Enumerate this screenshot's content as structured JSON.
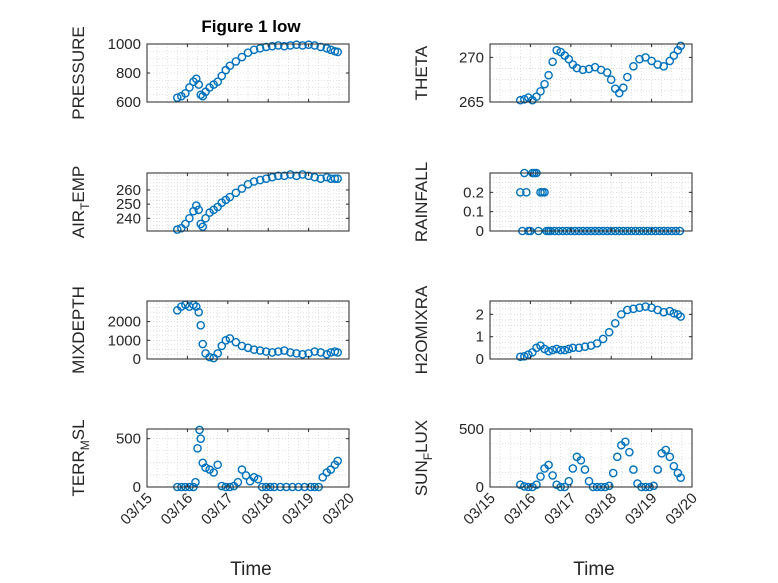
{
  "figure": {
    "title": "Figure 1 low"
  },
  "colors": {
    "marker": "#0072BD",
    "axis": "#262626",
    "grid": "#c8c8c8"
  },
  "x_axis": {
    "label": "Time",
    "ticks": [
      "03/15",
      "03/16",
      "03/17",
      "03/18",
      "03/19",
      "03/20"
    ],
    "tick_values": [
      15,
      16,
      17,
      18,
      19,
      20
    ]
  },
  "chart_data": [
    {
      "type": "scatter",
      "ylabel": "PRESSURE",
      "sub": "",
      "suffix": "",
      "xlim": [
        15,
        20
      ],
      "ylim": [
        600,
        1000
      ],
      "yticks": [
        600,
        800,
        1000
      ],
      "x": [
        15.75,
        15.85,
        15.95,
        16.05,
        16.15,
        16.22,
        16.28,
        16.33,
        16.38,
        16.45,
        16.55,
        16.65,
        16.75,
        16.85,
        16.95,
        17.05,
        17.2,
        17.35,
        17.5,
        17.65,
        17.8,
        17.95,
        18.1,
        18.25,
        18.4,
        18.55,
        18.7,
        18.85,
        19.0,
        19.15,
        19.3,
        19.45,
        19.55,
        19.65,
        19.72
      ],
      "y": [
        630,
        640,
        660,
        700,
        740,
        760,
        720,
        650,
        640,
        670,
        700,
        720,
        740,
        780,
        820,
        850,
        880,
        910,
        940,
        960,
        970,
        980,
        985,
        990,
        985,
        990,
        995,
        990,
        995,
        990,
        980,
        970,
        960,
        950,
        945
      ]
    },
    {
      "type": "scatter",
      "ylabel": "THETA",
      "sub": "",
      "suffix": "",
      "xlim": [
        15,
        20
      ],
      "ylim": [
        265,
        271.5
      ],
      "yticks": [
        265,
        270
      ],
      "x": [
        15.75,
        15.85,
        15.95,
        16.05,
        16.15,
        16.25,
        16.35,
        16.45,
        16.55,
        16.65,
        16.75,
        16.85,
        16.95,
        17.05,
        17.15,
        17.3,
        17.45,
        17.6,
        17.75,
        17.9,
        18.0,
        18.1,
        18.2,
        18.3,
        18.4,
        18.55,
        18.7,
        18.85,
        19.0,
        19.15,
        19.3,
        19.45,
        19.55,
        19.65,
        19.72
      ],
      "y": [
        265.2,
        265.3,
        265.5,
        265.2,
        265.6,
        266.2,
        267.0,
        268.0,
        269.5,
        270.8,
        270.6,
        270.2,
        269.8,
        269.2,
        268.8,
        268.6,
        268.7,
        268.9,
        268.6,
        268.3,
        267.5,
        266.5,
        266.0,
        266.6,
        267.8,
        269.0,
        269.8,
        270.0,
        269.6,
        269.2,
        269.0,
        269.6,
        270.2,
        270.8,
        271.3
      ]
    },
    {
      "type": "scatter",
      "ylabel": "AIR",
      "sub": "T",
      "suffix": "EMP",
      "xlim": [
        15,
        20
      ],
      "ylim": [
        231,
        272
      ],
      "yticks": [
        240,
        250,
        260
      ],
      "x": [
        15.75,
        15.85,
        15.95,
        16.05,
        16.15,
        16.22,
        16.28,
        16.33,
        16.38,
        16.45,
        16.55,
        16.65,
        16.75,
        16.85,
        16.95,
        17.05,
        17.2,
        17.35,
        17.5,
        17.65,
        17.8,
        17.95,
        18.1,
        18.25,
        18.4,
        18.55,
        18.7,
        18.85,
        19.0,
        19.15,
        19.3,
        19.45,
        19.55,
        19.65,
        19.72
      ],
      "y": [
        232,
        233,
        236,
        240,
        245,
        249,
        246,
        236,
        234,
        240,
        244,
        246,
        248,
        251,
        253,
        255,
        258,
        261,
        264,
        266,
        267,
        268,
        269,
        270,
        270,
        271,
        270,
        271,
        270,
        269,
        268,
        269,
        268,
        268,
        268
      ]
    },
    {
      "type": "scatter",
      "ylabel": "RAINFALL",
      "sub": "",
      "suffix": "",
      "xlim": [
        15,
        20
      ],
      "ylim": [
        0,
        0.3
      ],
      "yticks": [
        0,
        0.1,
        0.2
      ],
      "x": [
        15.75,
        15.8,
        15.85,
        15.9,
        15.95,
        16.0,
        16.05,
        16.1,
        16.15,
        16.2,
        16.25,
        16.3,
        16.35,
        16.4,
        16.45,
        16.5,
        16.6,
        16.7,
        16.8,
        16.9,
        17.0,
        17.1,
        17.2,
        17.3,
        17.4,
        17.5,
        17.6,
        17.7,
        17.8,
        17.9,
        18.0,
        18.1,
        18.2,
        18.3,
        18.4,
        18.5,
        18.6,
        18.7,
        18.8,
        18.9,
        19.0,
        19.1,
        19.2,
        19.3,
        19.4,
        19.5,
        19.6,
        19.7
      ],
      "y": [
        0.2,
        0.0,
        0.3,
        0.2,
        0.0,
        0.0,
        0.3,
        0.3,
        0.3,
        0.0,
        0.2,
        0.2,
        0.2,
        0.0,
        0.0,
        0.0,
        0.0,
        0.0,
        0.0,
        0.0,
        0.0,
        0.0,
        0.0,
        0.0,
        0.0,
        0.0,
        0.0,
        0.0,
        0.0,
        0.0,
        0.0,
        0.0,
        0.0,
        0.0,
        0.0,
        0.0,
        0.0,
        0.0,
        0.0,
        0.0,
        0.0,
        0.0,
        0.0,
        0.0,
        0.0,
        0.0,
        0.0,
        0.0
      ]
    },
    {
      "type": "scatter",
      "ylabel": "MIXDEPTH",
      "sub": "",
      "suffix": "",
      "xlim": [
        15,
        20
      ],
      "ylim": [
        0,
        3100
      ],
      "yticks": [
        0,
        1000,
        2000
      ],
      "x": [
        15.75,
        15.85,
        15.95,
        16.05,
        16.15,
        16.22,
        16.28,
        16.33,
        16.38,
        16.45,
        16.55,
        16.65,
        16.75,
        16.85,
        16.95,
        17.05,
        17.2,
        17.35,
        17.5,
        17.65,
        17.8,
        17.95,
        18.1,
        18.25,
        18.4,
        18.55,
        18.7,
        18.85,
        19.0,
        19.15,
        19.3,
        19.45,
        19.55,
        19.65,
        19.72
      ],
      "y": [
        2600,
        2800,
        2900,
        2800,
        2900,
        2800,
        2500,
        1800,
        800,
        300,
        100,
        50,
        300,
        700,
        1000,
        1100,
        900,
        700,
        600,
        500,
        450,
        400,
        350,
        400,
        450,
        350,
        300,
        250,
        300,
        400,
        350,
        250,
        350,
        400,
        350
      ]
    },
    {
      "type": "scatter",
      "ylabel": "H2OMIXRA",
      "sub": "",
      "suffix": "",
      "xlim": [
        15,
        20
      ],
      "ylim": [
        0,
        2.6
      ],
      "yticks": [
        0,
        1,
        2
      ],
      "x": [
        15.75,
        15.85,
        15.95,
        16.05,
        16.15,
        16.25,
        16.35,
        16.45,
        16.55,
        16.65,
        16.75,
        16.85,
        16.95,
        17.05,
        17.2,
        17.35,
        17.5,
        17.65,
        17.8,
        17.95,
        18.1,
        18.25,
        18.4,
        18.55,
        18.7,
        18.85,
        19.0,
        19.15,
        19.3,
        19.45,
        19.55,
        19.65,
        19.72
      ],
      "y": [
        0.1,
        0.12,
        0.2,
        0.3,
        0.5,
        0.6,
        0.45,
        0.35,
        0.4,
        0.45,
        0.4,
        0.4,
        0.45,
        0.5,
        0.5,
        0.55,
        0.6,
        0.7,
        0.9,
        1.2,
        1.6,
        2.0,
        2.2,
        2.25,
        2.3,
        2.35,
        2.3,
        2.2,
        2.1,
        2.15,
        2.05,
        2.0,
        1.9
      ]
    },
    {
      "type": "scatter",
      "ylabel": "TERR",
      "sub": "M",
      "suffix": "SL",
      "xlim": [
        15,
        20
      ],
      "ylim": [
        0,
        600
      ],
      "yticks": [
        0,
        500
      ],
      "x": [
        15.75,
        15.85,
        15.95,
        16.05,
        16.15,
        16.2,
        16.25,
        16.3,
        16.33,
        16.38,
        16.45,
        16.55,
        16.65,
        16.75,
        16.85,
        16.95,
        17.05,
        17.15,
        17.25,
        17.35,
        17.45,
        17.55,
        17.65,
        17.75,
        17.85,
        17.95,
        18.05,
        18.15,
        18.3,
        18.45,
        18.6,
        18.75,
        18.9,
        19.05,
        19.15,
        19.25,
        19.35,
        19.45,
        19.55,
        19.65,
        19.72
      ],
      "y": [
        0,
        0,
        0,
        0,
        0,
        50,
        400,
        590,
        500,
        250,
        200,
        180,
        150,
        230,
        10,
        0,
        0,
        10,
        50,
        180,
        120,
        60,
        100,
        80,
        0,
        0,
        0,
        0,
        0,
        0,
        0,
        0,
        0,
        0,
        0,
        0,
        100,
        150,
        180,
        230,
        270
      ]
    },
    {
      "type": "scatter",
      "ylabel": "SUN",
      "sub": "F",
      "suffix": "LUX",
      "xlim": [
        15,
        20
      ],
      "ylim": [
        0,
        500
      ],
      "yticks": [
        0,
        500
      ],
      "x": [
        15.75,
        15.85,
        15.95,
        16.05,
        16.15,
        16.25,
        16.35,
        16.45,
        16.55,
        16.65,
        16.75,
        16.85,
        16.95,
        17.05,
        17.15,
        17.25,
        17.35,
        17.45,
        17.55,
        17.65,
        17.75,
        17.85,
        17.95,
        18.05,
        18.15,
        18.25,
        18.35,
        18.45,
        18.55,
        18.65,
        18.75,
        18.85,
        18.95,
        19.05,
        19.15,
        19.25,
        19.35,
        19.45,
        19.55,
        19.65,
        19.72
      ],
      "y": [
        20,
        5,
        0,
        0,
        20,
        90,
        160,
        190,
        100,
        20,
        0,
        0,
        50,
        160,
        260,
        230,
        150,
        50,
        0,
        0,
        0,
        0,
        10,
        120,
        260,
        360,
        390,
        300,
        150,
        30,
        0,
        0,
        0,
        10,
        150,
        290,
        320,
        260,
        180,
        120,
        80
      ]
    }
  ]
}
